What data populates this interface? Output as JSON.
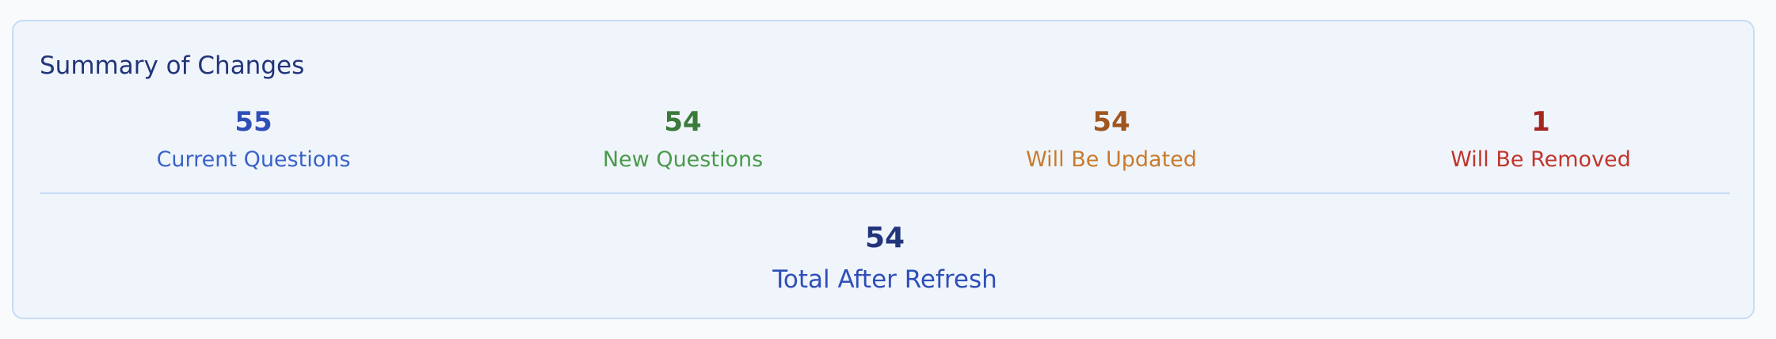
{
  "summary": {
    "title": "Summary of Changes",
    "stats": [
      {
        "value": "55",
        "label": "Current Questions",
        "value_color": "#2f4fb8",
        "label_color": "#3a63c8"
      },
      {
        "value": "54",
        "label": "New Questions",
        "value_color": "#3a7a3a",
        "label_color": "#4a9a4a"
      },
      {
        "value": "54",
        "label": "Will Be Updated",
        "value_color": "#a0561f",
        "label_color": "#c97a2c"
      },
      {
        "value": "1",
        "label": "Will Be Removed",
        "value_color": "#a3271f",
        "label_color": "#c0362c"
      }
    ],
    "total": {
      "value": "54",
      "label": "Total After Refresh"
    }
  }
}
